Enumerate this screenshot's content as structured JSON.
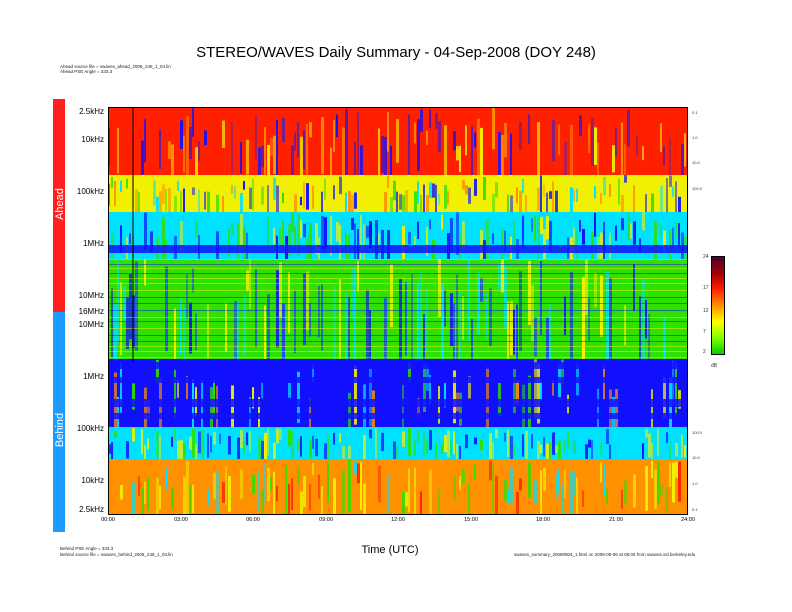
{
  "title": "STEREO/WAVES Daily Summary - 04-Sep-2008 (DOY 248)",
  "ahead_info": [
    "Ahead source file = swaves_ahead_2008_248_1_04.lin",
    "Ahead PSE Angle = 333.3"
  ],
  "behind_info": [
    "Behind PSE Angle = 333.3",
    "Behind source file = swaves_behind_2008_248_1_04.lin"
  ],
  "footer_file": "swaves_summary_20080904_1.html on 2008-09-06 at 08:00 from swaves.ssl.berkeley.edu",
  "chart_data": {
    "type": "heatmap",
    "title": "STEREO/WAVES Daily Summary - 04-Sep-2008 (DOY 248)",
    "xlabel": "Time (UTC)",
    "x_ticks": [
      "00:00",
      "03:00",
      "06:00",
      "09:00",
      "12:00",
      "15:00",
      "18:00",
      "21:00",
      "24:00"
    ],
    "xlim": [
      "00:00",
      "24:00"
    ],
    "panels": [
      {
        "name": "Ahead",
        "color": "#ff2020",
        "y_ticks": [
          "2.5kHz",
          "10kHz",
          "100kHz",
          "1MHz",
          "10MHz",
          "16MHz"
        ],
        "y_scale": "log"
      },
      {
        "name": "Behind",
        "color": "#1e9bff",
        "y_ticks": [
          "10MHz",
          "1MHz",
          "100kHz",
          "10kHz",
          "2.5kHz"
        ],
        "y_scale": "log"
      }
    ],
    "right_ticks_ahead": [
      "0.1",
      "1.0",
      "10.0",
      "100.0"
    ],
    "right_ticks_behind": [
      "100.0",
      "10.0",
      "1.0",
      "0.1"
    ],
    "colorbar": {
      "unit": "dB",
      "ticks": [
        "24",
        "17",
        "12",
        "7",
        "2"
      ],
      "range": [
        2,
        24
      ],
      "colors": [
        "#00d000",
        "#80ff00",
        "#ffff00",
        "#ff9000",
        "#ff2000",
        "#a00000",
        "#500030"
      ]
    },
    "palette": {
      "bg": "#1010ff",
      "blue2": "#2040ff",
      "cyan": "#00e0ff",
      "green": "#30e000",
      "yellow": "#f0f000",
      "orange": "#ff9000",
      "red": "#ff2000",
      "purple": "#6020a0"
    }
  }
}
